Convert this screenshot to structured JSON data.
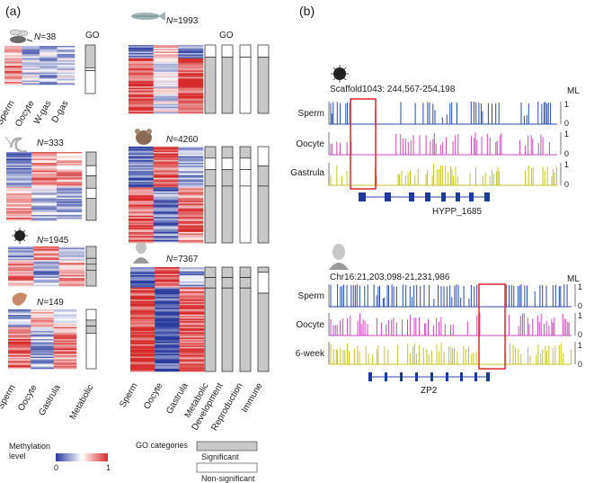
{
  "panel_a": {
    "label": "(a)",
    "go_header": "GO",
    "go_header_2": "GO",
    "species_blocks": [
      {
        "icon": "bee-icon",
        "n_label": "N",
        "n_value": "=38"
      },
      {
        "icon": "shrimp-icon",
        "n_label": "N",
        "n_value": "=333"
      },
      {
        "icon": "sea-urchin-icon",
        "n_label": "N",
        "n_value": "=1945"
      },
      {
        "icon": "oyster-icon",
        "n_label": "N",
        "n_value": "=149"
      },
      {
        "icon": "zebrafish-icon",
        "n_label": "N",
        "n_value": "=1993"
      },
      {
        "icon": "mouse-icon",
        "n_label": "N",
        "n_value": "=4260"
      },
      {
        "icon": "human-icon",
        "n_label": "N",
        "n_value": "=7367"
      }
    ],
    "col_labels_first": [
      "Sperm",
      "Oocyte",
      "W-gas",
      "D-gas"
    ],
    "col_labels_left_bottom": [
      "Sperm",
      "Oocyte",
      "Gastrula",
      "Metabolic"
    ],
    "col_labels_right_bottom": [
      "Sperm",
      "Oocyte",
      "Gastrula",
      "Metabolic",
      "Development",
      "Reproduction",
      "Immune"
    ],
    "legend": {
      "title_line1": "Methylation",
      "title_line2": "level",
      "min": "0",
      "max": "1",
      "colors": {
        "low": "#2b3c9e",
        "mid": "#ffffff",
        "high": "#d62a2a"
      }
    },
    "go_legend": {
      "title": "GO categories",
      "significant": "Significant",
      "non_significant": "Non-significant",
      "significant_color": "#c8c8c8"
    }
  },
  "panel_b": {
    "label": "(b)",
    "tracks_1": {
      "coords": "Scaffold1043: 244,567-254,198",
      "ml": "ML",
      "rows": [
        "Sperm",
        "Oocyte",
        "Gastrula"
      ],
      "gene": "HYPP_1685",
      "ticks": [
        "1",
        "0",
        "1",
        "0",
        "1",
        "0"
      ]
    },
    "tracks_2": {
      "coords": "Chr16:21,203,098-21,231,986",
      "ml": "ML",
      "rows": [
        "Sperm",
        "Oocyte",
        "6-week"
      ],
      "gene": "ZP2",
      "ticks": [
        "1",
        "0",
        "1",
        "0",
        "1",
        "0"
      ]
    },
    "track_colors": {
      "sperm": "#2b4aa8",
      "oocyte": "#c94ab8",
      "third": "#c4c423",
      "highlight": "#e0262e"
    }
  }
}
